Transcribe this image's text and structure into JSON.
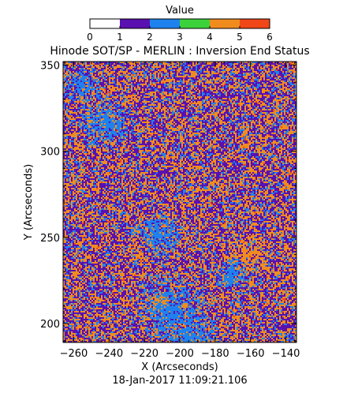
{
  "chart_data": {
    "type": "heatmap",
    "title": "Hinode SOT/SP - MERLIN : Inversion End Status",
    "xlabel": "X (Arcseconds)",
    "ylabel": "Y (Arcseconds)",
    "timestamp": "18-Jan-2017 11:09:21.106",
    "xlim": [
      -266,
      -134
    ],
    "ylim": [
      189,
      352
    ],
    "x_ticks": [
      -260,
      -240,
      -220,
      -200,
      -180,
      -160,
      -140
    ],
    "x_tick_labels": [
      "−260",
      "−240",
      "−220",
      "−200",
      "−180",
      "−160",
      "−140"
    ],
    "y_ticks": [
      200,
      250,
      300,
      350
    ],
    "y_tick_labels": [
      "200",
      "250",
      "300",
      "350"
    ],
    "colorbar": {
      "title": "Value",
      "range": [
        0,
        6
      ],
      "ticks": [
        0,
        1,
        2,
        3,
        4,
        5,
        6
      ],
      "tick_labels": [
        "0",
        "1",
        "2",
        "3",
        "4",
        "5",
        "6"
      ],
      "bins": [
        {
          "from": 0,
          "to": 1,
          "color": "#ffffff"
        },
        {
          "from": 1,
          "to": 2,
          "color": "#5a10b0"
        },
        {
          "from": 2,
          "to": 3,
          "color": "#1e82ee"
        },
        {
          "from": 3,
          "to": 4,
          "color": "#3cd23c"
        },
        {
          "from": 4,
          "to": 5,
          "color": "#f08c1e"
        },
        {
          "from": 5,
          "to": 6,
          "color": "#f04618"
        }
      ]
    },
    "value_mix": [
      {
        "value": 1,
        "share": 0.42
      },
      {
        "value": 4,
        "share": 0.4
      },
      {
        "value": 2,
        "share": 0.16
      },
      {
        "value": 5,
        "share": 0.02
      }
    ],
    "light_blue_regions": [
      {
        "x": -205,
        "y": 207,
        "r": 14,
        "value": 2
      },
      {
        "x": -195,
        "y": 194,
        "r": 12,
        "value": 2
      },
      {
        "x": -243,
        "y": 316,
        "r": 11,
        "value": 2
      },
      {
        "x": -255,
        "y": 338,
        "r": 8,
        "value": 2
      },
      {
        "x": -212,
        "y": 252,
        "r": 9,
        "value": 2
      },
      {
        "x": -170,
        "y": 228,
        "r": 7,
        "value": 2
      }
    ],
    "orange_regions": [
      {
        "x": -212,
        "y": 212,
        "r": 5,
        "value": 4
      },
      {
        "x": -160,
        "y": 240,
        "r": 10,
        "value": 4
      }
    ]
  }
}
